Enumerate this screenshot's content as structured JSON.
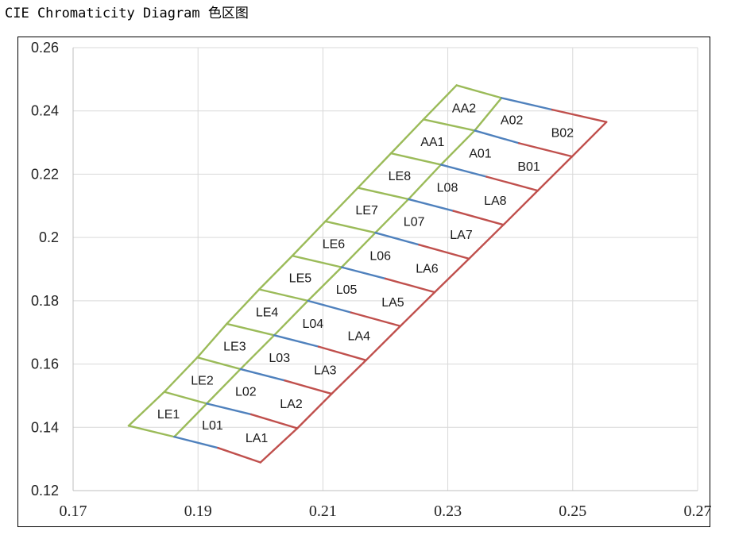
{
  "page": {
    "title": "CIE Chromaticity Diagram 色区图"
  },
  "colors": {
    "le_family": "#9bbb59",
    "l0_family": "#4f81bd",
    "la_family": "#c0504d",
    "grid": "#d9d9d9",
    "axis": "#bfbfbf"
  },
  "chart_data": {
    "type": "line",
    "title": "",
    "xlabel": "",
    "ylabel": "",
    "xlim": [
      0.17,
      0.27
    ],
    "ylim": [
      0.12,
      0.26
    ],
    "x_ticks": [
      0.17,
      0.19,
      0.21,
      0.23,
      0.25,
      0.27
    ],
    "x_tick_labels": [
      "0.17",
      "0.19",
      "0.21",
      "0.23",
      "0.25",
      "0.27"
    ],
    "y_ticks": [
      0.12,
      0.14,
      0.16,
      0.18,
      0.2,
      0.22,
      0.24,
      0.26
    ],
    "y_tick_labels": [
      "0.12",
      "0.14",
      "0.16",
      "0.18",
      "0.2",
      "0.22",
      "0.24",
      "0.26"
    ],
    "grid": true,
    "boundary_points": {
      "left": [
        [
          0.1789,
          0.1405
        ],
        [
          0.1846,
          0.1512
        ],
        [
          0.1899,
          0.1621
        ],
        [
          0.1946,
          0.1727
        ],
        [
          0.1998,
          0.1836
        ],
        [
          0.2051,
          0.1942
        ],
        [
          0.2104,
          0.2051
        ],
        [
          0.2156,
          0.2157
        ],
        [
          0.2209,
          0.2266
        ],
        [
          0.2261,
          0.2373
        ],
        [
          0.2314,
          0.2481
        ]
      ],
      "inner": [
        [
          0.1862,
          0.137
        ],
        [
          0.1914,
          0.1475
        ],
        [
          0.1968,
          0.1584
        ],
        [
          0.2022,
          0.1691
        ],
        [
          0.2076,
          0.18
        ],
        [
          0.213,
          0.1906
        ],
        [
          0.2184,
          0.2015
        ],
        [
          0.2237,
          0.2121
        ],
        [
          0.2289,
          0.223
        ],
        [
          0.2343,
          0.2338
        ],
        [
          0.2386,
          0.2441
        ]
      ],
      "mid": [
        [
          0.1932,
          0.1335
        ],
        [
          0.1985,
          0.1441
        ],
        [
          0.2039,
          0.1548
        ],
        [
          0.2093,
          0.1655
        ],
        [
          0.2145,
          0.1763
        ],
        [
          0.22,
          0.187
        ],
        [
          0.2254,
          0.1977
        ],
        [
          0.2309,
          0.2084
        ],
        [
          0.2362,
          0.2192
        ],
        [
          0.2414,
          0.2298
        ],
        [
          0.2467,
          0.2404
        ]
      ],
      "right": [
        [
          0.2,
          0.1289
        ],
        [
          0.2059,
          0.1397
        ],
        [
          0.2114,
          0.1506
        ],
        [
          0.2169,
          0.1612
        ],
        [
          0.2224,
          0.172
        ],
        [
          0.2279,
          0.1827
        ],
        [
          0.2334,
          0.1933
        ],
        [
          0.2389,
          0.204
        ],
        [
          0.2444,
          0.2148
        ],
        [
          0.2499,
          0.2256
        ],
        [
          0.2554,
          0.2365
        ]
      ]
    },
    "series": [
      {
        "family": "LE",
        "color": "#9bbb59",
        "labels": [
          "LE1",
          "LE2",
          "LE3",
          "LE4",
          "LE5",
          "LE6",
          "LE7",
          "LE8",
          "AA1",
          "AA2"
        ]
      },
      {
        "family": "L0",
        "color": "#4f81bd",
        "labels": [
          "L01",
          "L02",
          "L03",
          "L04",
          "L05",
          "L06",
          "L07",
          "L08",
          "A01",
          "A02"
        ]
      },
      {
        "family": "LA",
        "color": "#c0504d",
        "labels": [
          "LA1",
          "LA2",
          "LA3",
          "LA4",
          "LA5",
          "LA6",
          "LA7",
          "LA8",
          "B01",
          "B02"
        ]
      }
    ]
  }
}
